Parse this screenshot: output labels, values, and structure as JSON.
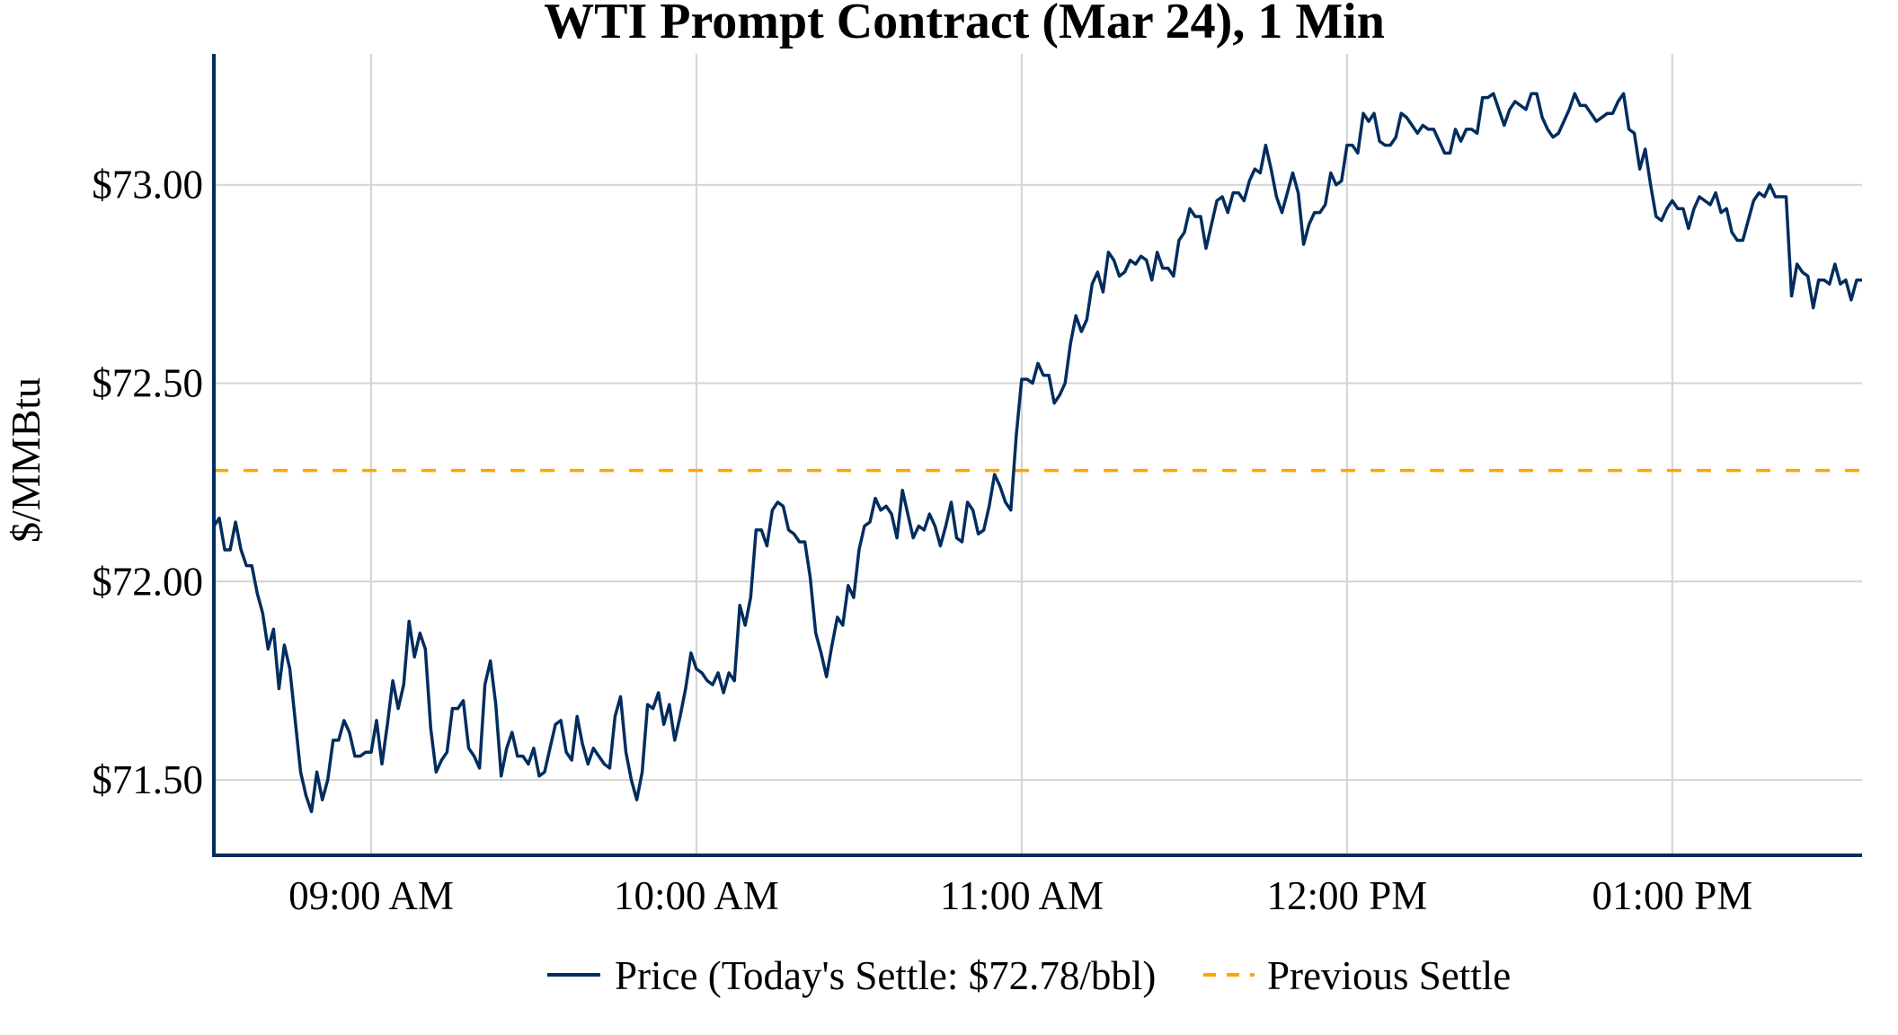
{
  "chart_data": {
    "type": "line",
    "title": "WTI Prompt Contract (Mar 24), 1 Min",
    "xlabel": "",
    "ylabel": "$/MMBtu",
    "x_start": "08:31",
    "x_interval_minutes": 1,
    "xlim": [
      "08:31",
      "13:35"
    ],
    "ylim": [
      71.31,
      73.33
    ],
    "grid": true,
    "x_ticks": [
      {
        "time": "09:00",
        "label": "09:00 AM"
      },
      {
        "time": "10:00",
        "label": "10:00 AM"
      },
      {
        "time": "11:00",
        "label": "11:00 AM"
      },
      {
        "time": "12:00",
        "label": "12:00 PM"
      },
      {
        "time": "13:00",
        "label": "01:00 PM"
      }
    ],
    "y_ticks": [
      {
        "value": 71.5,
        "label": "$71.50"
      },
      {
        "value": 72.0,
        "label": "$72.00"
      },
      {
        "value": 72.5,
        "label": "$72.50"
      },
      {
        "value": 73.0,
        "label": "$73.00"
      }
    ],
    "legend_position": "bottom-center",
    "series": [
      {
        "name": "Price (Today's Settle: $72.78/bbl)",
        "style": "solid",
        "color": "#002d5e",
        "values": [
          72.14,
          72.16,
          72.08,
          72.08,
          72.15,
          72.08,
          72.04,
          72.04,
          71.97,
          71.92,
          71.83,
          71.88,
          71.73,
          71.84,
          71.78,
          71.65,
          71.52,
          71.46,
          71.42,
          71.52,
          71.45,
          71.5,
          71.6,
          71.6,
          71.65,
          71.62,
          71.56,
          71.56,
          71.57,
          71.57,
          71.65,
          71.54,
          71.64,
          71.75,
          71.68,
          71.74,
          71.9,
          71.81,
          71.87,
          71.83,
          71.63,
          71.52,
          71.55,
          71.57,
          71.68,
          71.68,
          71.7,
          71.58,
          71.56,
          71.53,
          71.74,
          71.8,
          71.69,
          71.51,
          71.58,
          71.62,
          71.56,
          71.56,
          71.54,
          71.58,
          71.51,
          71.52,
          71.58,
          71.64,
          71.65,
          71.57,
          71.55,
          71.66,
          71.59,
          71.54,
          71.58,
          71.56,
          71.54,
          71.53,
          71.66,
          71.71,
          71.57,
          71.5,
          71.45,
          71.52,
          71.69,
          71.68,
          71.72,
          71.64,
          71.69,
          71.6,
          71.66,
          71.73,
          71.82,
          71.78,
          71.77,
          71.75,
          71.74,
          71.77,
          71.72,
          71.77,
          71.75,
          71.94,
          71.89,
          71.96,
          72.13,
          72.13,
          72.09,
          72.18,
          72.2,
          72.19,
          72.13,
          72.12,
          72.1,
          72.1,
          72.01,
          71.87,
          71.82,
          71.76,
          71.84,
          71.91,
          71.89,
          71.99,
          71.96,
          72.08,
          72.14,
          72.15,
          72.21,
          72.18,
          72.19,
          72.17,
          72.11,
          72.23,
          72.17,
          72.11,
          72.14,
          72.13,
          72.17,
          72.14,
          72.09,
          72.14,
          72.2,
          72.11,
          72.1,
          72.2,
          72.18,
          72.12,
          72.13,
          72.19,
          72.27,
          72.24,
          72.2,
          72.18,
          72.37,
          72.51,
          72.51,
          72.5,
          72.55,
          72.52,
          72.52,
          72.45,
          72.47,
          72.5,
          72.6,
          72.67,
          72.63,
          72.66,
          72.75,
          72.78,
          72.73,
          72.83,
          72.81,
          72.77,
          72.78,
          72.81,
          72.8,
          72.82,
          72.81,
          72.76,
          72.83,
          72.79,
          72.79,
          72.77,
          72.86,
          72.88,
          72.94,
          72.92,
          72.92,
          72.84,
          72.9,
          72.96,
          72.97,
          72.93,
          72.98,
          72.98,
          72.96,
          73.01,
          73.04,
          73.03,
          73.1,
          73.04,
          72.97,
          72.93,
          72.98,
          73.03,
          72.98,
          72.85,
          72.9,
          72.93,
          72.93,
          72.95,
          73.03,
          73.0,
          73.01,
          73.1,
          73.1,
          73.08,
          73.18,
          73.16,
          73.18,
          73.11,
          73.1,
          73.1,
          73.12,
          73.18,
          73.17,
          73.15,
          73.13,
          73.15,
          73.14,
          73.14,
          73.11,
          73.08,
          73.08,
          73.14,
          73.11,
          73.14,
          73.14,
          73.13,
          73.22,
          73.22,
          73.23,
          73.19,
          73.15,
          73.19,
          73.21,
          73.2,
          73.19,
          73.23,
          73.23,
          73.17,
          73.14,
          73.12,
          73.13,
          73.16,
          73.19,
          73.23,
          73.2,
          73.2,
          73.18,
          73.16,
          73.17,
          73.18,
          73.18,
          73.21,
          73.23,
          73.14,
          73.13,
          73.04,
          73.09,
          73.0,
          72.92,
          72.91,
          72.94,
          72.96,
          72.94,
          72.94,
          72.89,
          72.94,
          72.97,
          72.96,
          72.95,
          72.98,
          72.93,
          72.94,
          72.88,
          72.86,
          72.86,
          72.91,
          72.96,
          72.98,
          72.97,
          73.0,
          72.97,
          72.97,
          72.97,
          72.72,
          72.8,
          72.78,
          72.77,
          72.69,
          72.76,
          72.76,
          72.75,
          72.8,
          72.75,
          72.76,
          72.71,
          72.76,
          72.76
        ]
      },
      {
        "name": "Previous Settle",
        "style": "dashed",
        "color": "#ffa500",
        "value": 72.28
      }
    ]
  }
}
